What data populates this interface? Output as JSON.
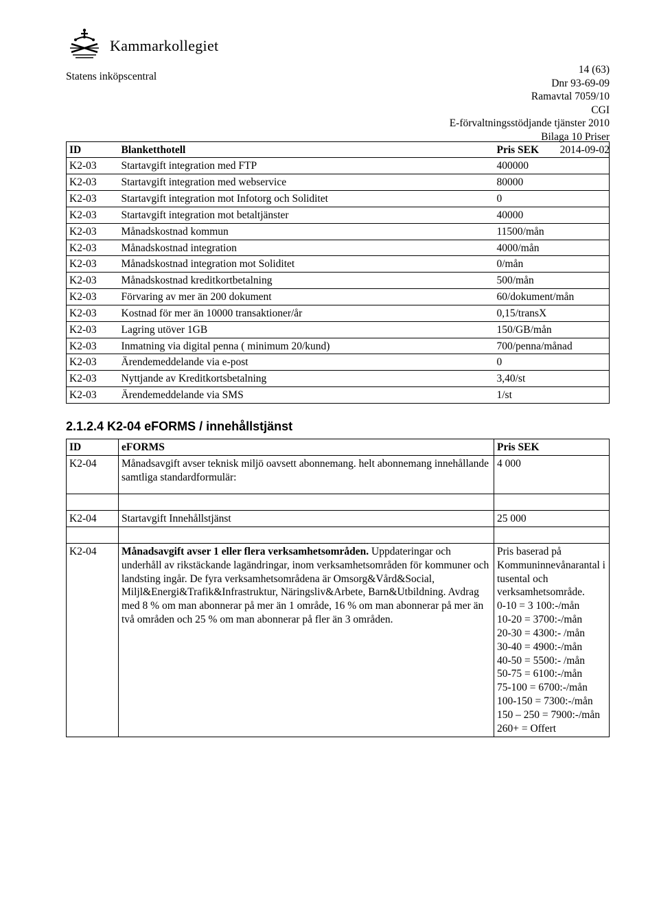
{
  "header": {
    "logo_text": "Kammarkollegiet",
    "page_num": "14 (63)",
    "left_line": "Statens inköpscentral",
    "right_lines": [
      "Dnr 93-69-09",
      "Ramavtal 7059/10",
      "CGI",
      "E-förvaltningsstödjande tjänster 2010",
      "Bilaga 10 Priser",
      "2014-09-02"
    ]
  },
  "table1": {
    "head": [
      "ID",
      "Blanketthotell",
      "Pris SEK"
    ],
    "rows": [
      [
        "K2-03",
        "Startavgift integration med FTP",
        "400000"
      ],
      [
        "K2-03",
        "Startavgift integration med webservice",
        "80000"
      ],
      [
        "K2-03",
        "Startavgift integration mot Infotorg och Soliditet",
        "0"
      ],
      [
        "K2-03",
        "Startavgift integration mot betaltjänster",
        "40000"
      ],
      [
        "K2-03",
        "Månadskostnad kommun",
        "11500/mån"
      ],
      [
        "K2-03",
        "Månadskostnad integration",
        "4000/mån"
      ],
      [
        "K2-03",
        "Månadskostnad integration mot Soliditet",
        "0/mån"
      ],
      [
        "K2-03",
        "Månadskostnad kreditkortbetalning",
        "500/mån"
      ],
      [
        "K2-03",
        "Förvaring av mer än 200 dokument",
        "60/dokument/mån"
      ],
      [
        "K2-03",
        "Kostnad för mer än 10000 transaktioner/år",
        "0,15/transX"
      ],
      [
        "K2-03",
        "Lagring utöver 1GB",
        "150/GB/mån"
      ],
      [
        "K2-03",
        "Inmatning via digital penna ( minimum 20/kund)",
        "700/penna/månad"
      ],
      [
        "K2-03",
        "Ärendemeddelande via e-post",
        "0"
      ],
      [
        "K2-03",
        "Nyttjande av Kreditkortsbetalning",
        "3,40/st"
      ],
      [
        "K2-03",
        "Ärendemeddelande via SMS",
        "1/st"
      ]
    ]
  },
  "section_heading": "2.1.2.4  K2-04 eFORMS / innehållstjänst",
  "table2": {
    "head": [
      "ID",
      "eFORMS",
      "Pris SEK"
    ],
    "rows": [
      {
        "id": "K2-04",
        "desc": "Månadsavgift avser teknisk miljö oavsett abonnemang. helt abonnemang innehållande samtliga standardformulär:",
        "price": "4 000"
      },
      {
        "id": "K2-04",
        "desc": "Startavgift Innehållstjänst",
        "price": "25 000"
      },
      {
        "id": "K2-04",
        "desc_bold": "Månadsavgift avser 1 eller flera verksamhetsområden.",
        "desc_rest": " Uppdateringar och underhåll av rikstäckande lagändringar, inom verksamhetsområden för kommuner och landsting ingår. De fyra verksamhetsområdena är Omsorg&Vård&Social, Miljl&Energi&Trafik&Infrastruktur, Näringsliv&Arbete, Barn&Utbildning. Avdrag med 8 % om man abonnerar på mer än 1 område, 16 % om man abonnerar på mer än två områden och 25 % om man abonnerar på fler än 3 områden.",
        "price_lines": [
          "Pris baserad på Kommuninnevånarantal i tusental och verksamhetsområde.",
          "0-10 = 3 100:-/mån",
          "10-20 = 3700:-/mån",
          "20-30 = 4300:- /mån",
          "30-40 = 4900:-/mån",
          "40-50 = 5500:- /mån",
          "50-75 = 6100:-/mån",
          "75-100 = 6700:-/mån",
          "100-150 = 7300:-/mån",
          "150 – 250 = 7900:-/mån",
          "260+ = Offert"
        ]
      }
    ]
  }
}
